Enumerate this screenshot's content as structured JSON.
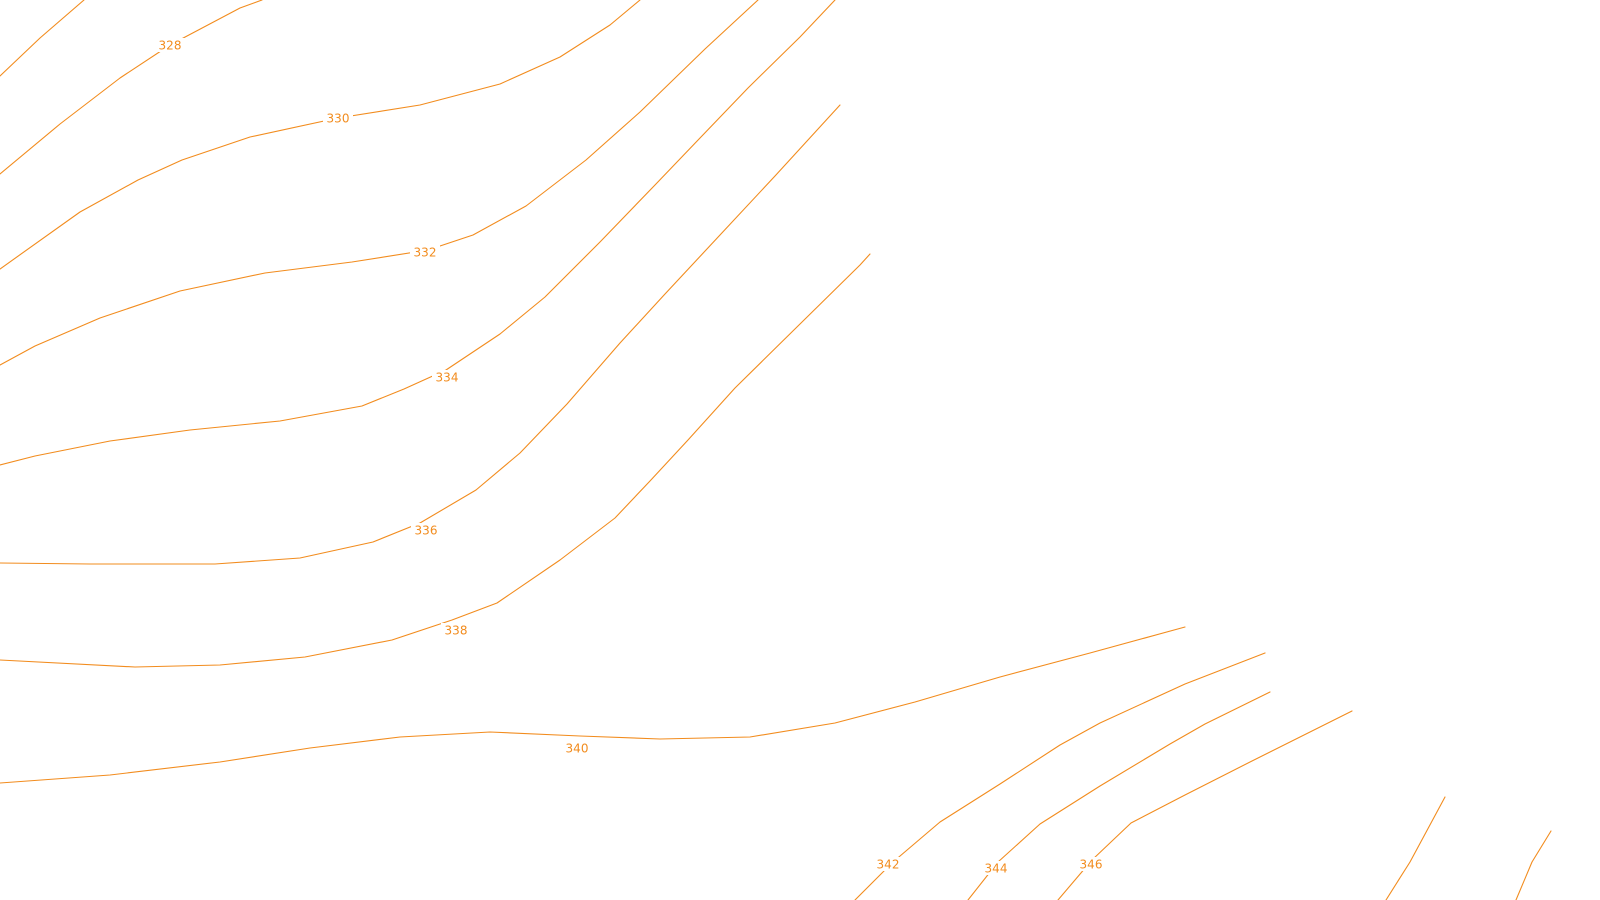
{
  "map": {
    "line_color": "#f28c1e",
    "label_color": "#f28c1e",
    "background": "#ffffff",
    "contour_labels": {
      "c328": "328",
      "c330": "330",
      "c332": "332",
      "c334": "334",
      "c336": "336",
      "c338": "338",
      "c340": "340",
      "c342": "342",
      "c344": "344",
      "c346": "346"
    }
  }
}
